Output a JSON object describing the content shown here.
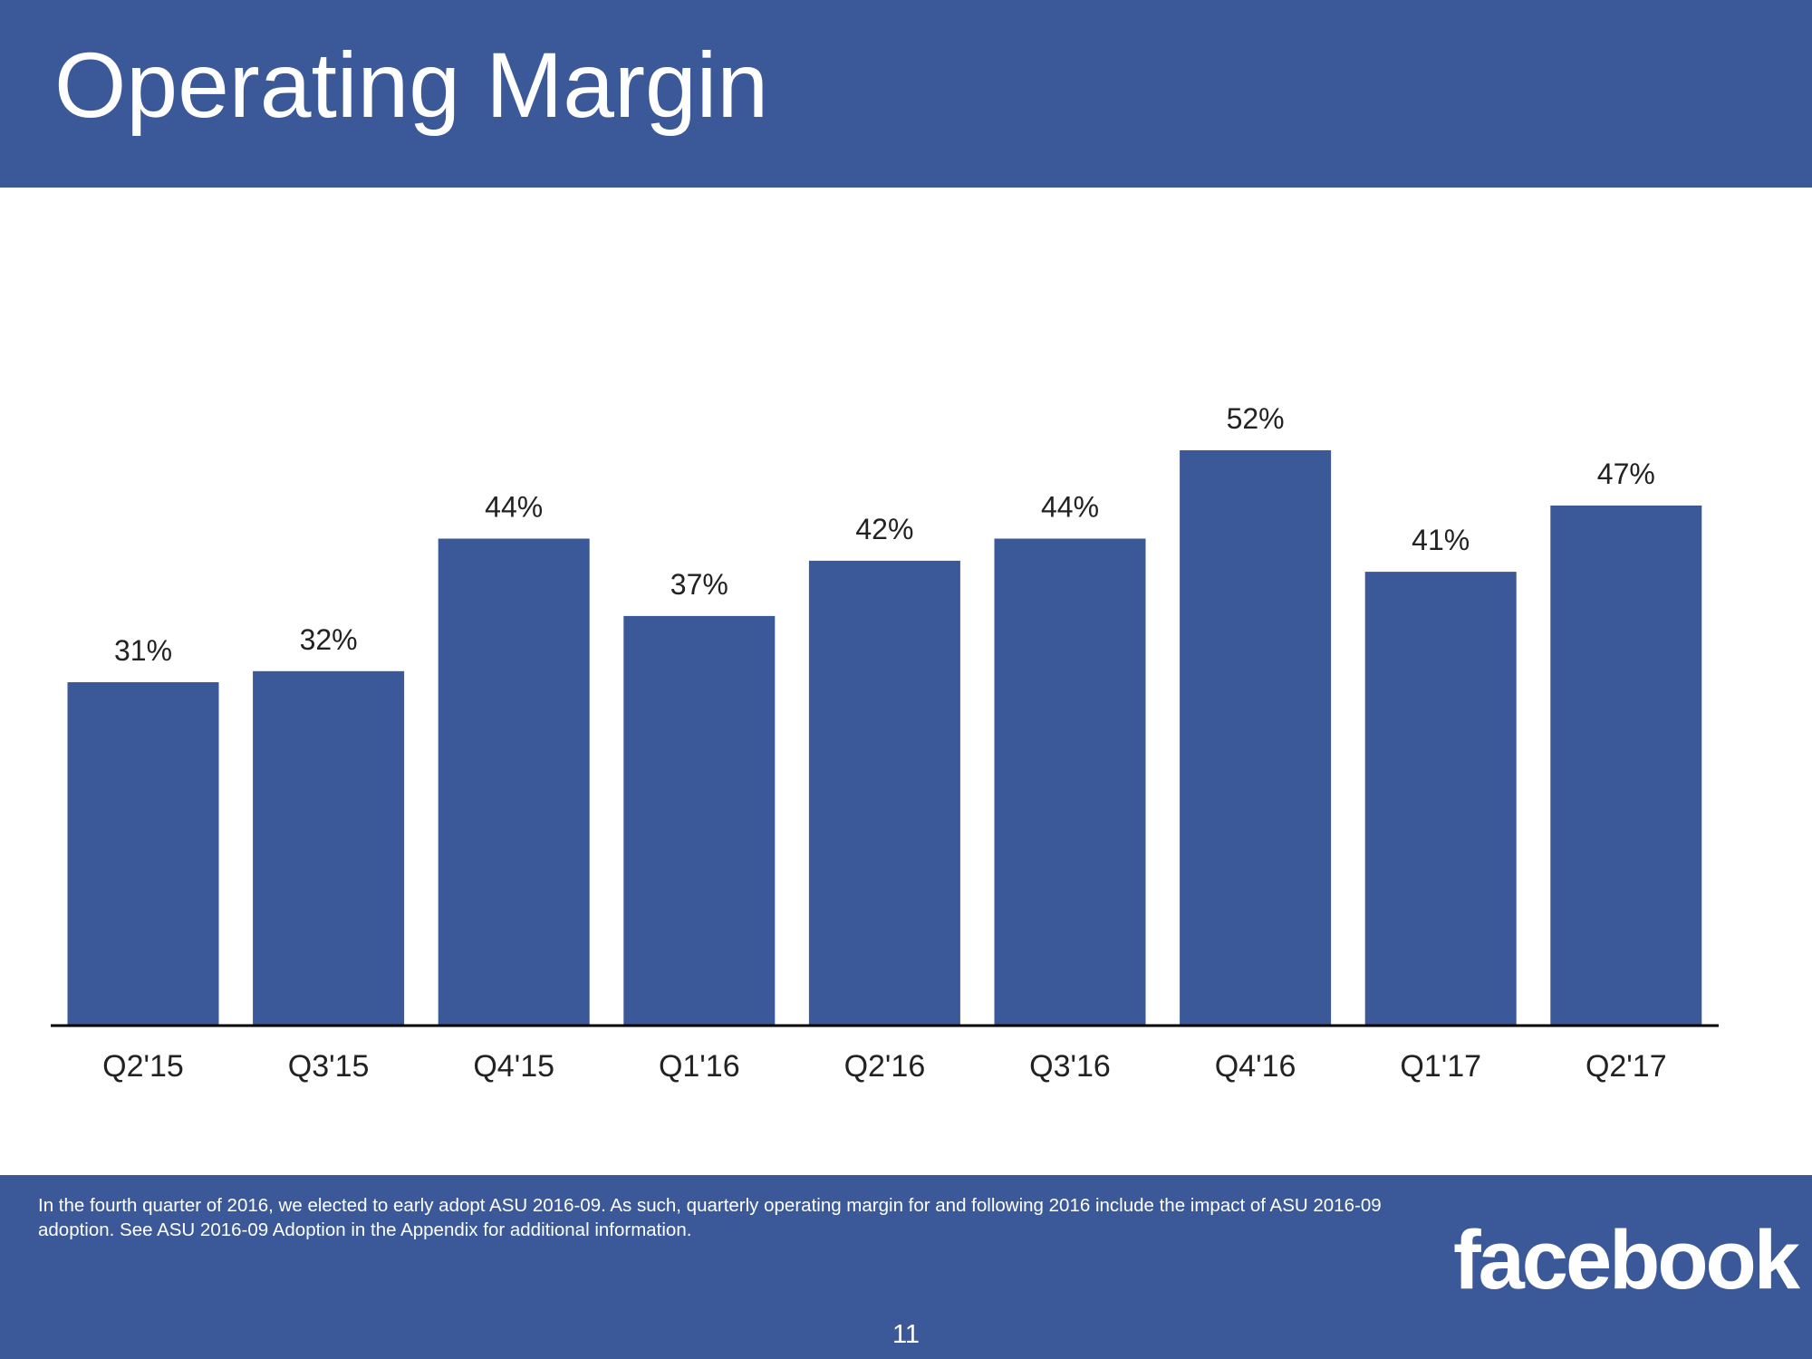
{
  "slide": {
    "title": "Operating Margin",
    "footnote": "In the fourth quarter of 2016, we elected to early adopt ASU 2016-09. As such, quarterly operating margin for and following 2016 include the impact of ASU 2016-09 adoption. See ASU 2016-09 Adoption in the Appendix for additional information.",
    "logo_text": "facebook",
    "page_number": "11"
  },
  "colors": {
    "brand": "#3b5998",
    "text_dark": "#222222",
    "axis": "#000000"
  },
  "chart_data": {
    "type": "bar",
    "title": "Operating Margin",
    "xlabel": "",
    "ylabel": "",
    "categories": [
      "Q2'15",
      "Q3'15",
      "Q4'15",
      "Q1'16",
      "Q2'16",
      "Q3'16",
      "Q4'16",
      "Q1'17",
      "Q2'17"
    ],
    "values": [
      31,
      32,
      44,
      37,
      42,
      44,
      52,
      41,
      47
    ],
    "value_labels": [
      "31%",
      "32%",
      "44%",
      "37%",
      "42%",
      "44%",
      "52%",
      "41%",
      "47%"
    ],
    "ylim": [
      0,
      52
    ],
    "grid": false,
    "legend": "none"
  }
}
